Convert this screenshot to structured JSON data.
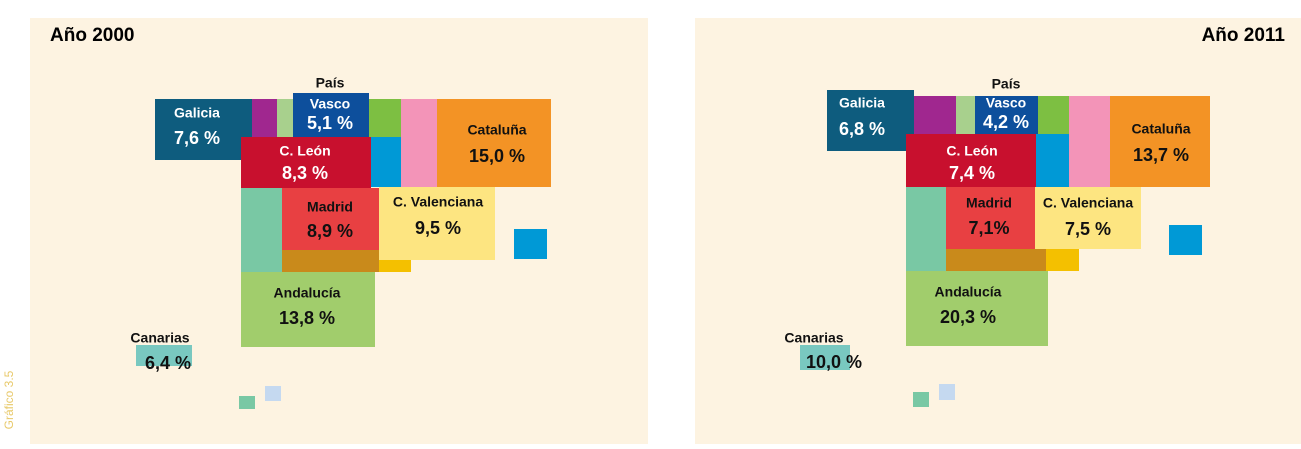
{
  "side_label": "Gráfico 3.5",
  "panels": [
    {
      "year": "Año 2000",
      "regions": [
        {
          "name": "Galicia",
          "value": "7,6 %"
        },
        {
          "prefix": "País",
          "name": "Vasco",
          "value": "5,1 %"
        },
        {
          "name": "Cataluña",
          "value": "15,0 %"
        },
        {
          "name": "C. León",
          "value": "8,3 %"
        },
        {
          "name": "Madrid",
          "value": "8,9 %"
        },
        {
          "name": "C. Valenciana",
          "value": "9,5 %"
        },
        {
          "name": "Andalucía",
          "value": "13,8 %"
        },
        {
          "name": "Canarias",
          "value": "6,4 %"
        }
      ]
    },
    {
      "year": "Año 2011",
      "regions": [
        {
          "name": "Galicia",
          "value": "6,8 %"
        },
        {
          "prefix": "País",
          "name": "Vasco",
          "value": "4,2 %"
        },
        {
          "name": "Cataluña",
          "value": "13,7 %"
        },
        {
          "name": "C. León",
          "value": "7,4 %"
        },
        {
          "name": "Madrid",
          "value": "7,1%"
        },
        {
          "name": "C. Valenciana",
          "value": "7,5 %"
        },
        {
          "name": "Andalucía",
          "value": "20,3 %"
        },
        {
          "name": "Canarias",
          "value": "10,0 %"
        }
      ]
    }
  ]
}
